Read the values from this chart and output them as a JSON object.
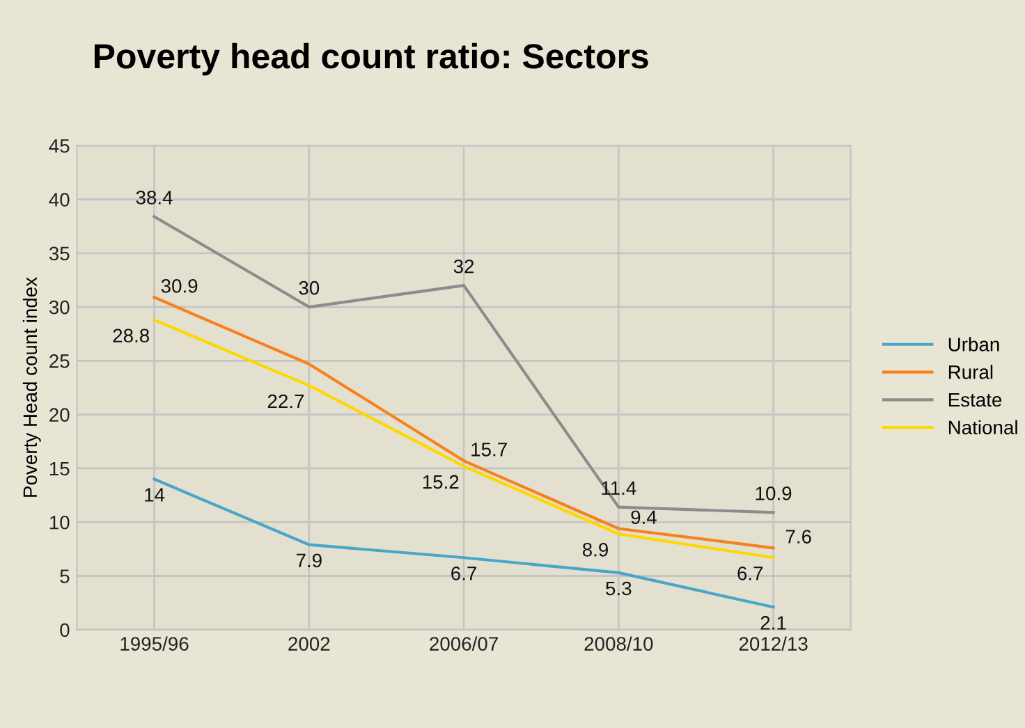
{
  "chart_data": {
    "type": "line",
    "title": "Poverty head count ratio: Sectors",
    "ylabel": "Poverty Head count index",
    "categories": [
      "1995/96",
      "2002",
      "2006/07",
      "2008/10",
      "2012/13"
    ],
    "series": [
      {
        "name": "Urban",
        "color": "#4aa6c8",
        "values": [
          14,
          7.9,
          6.7,
          5.3,
          2.1
        ],
        "value_labels": [
          "14",
          "7.9",
          "6.7",
          "5.3",
          "2.1"
        ]
      },
      {
        "name": "Rural",
        "color": "#f5821f",
        "values": [
          30.9,
          24.7,
          15.7,
          9.4,
          7.6
        ],
        "value_labels": [
          "30.9",
          null,
          "15.7",
          "9.4",
          "7.6"
        ]
      },
      {
        "name": "Estate",
        "color": "#8c8c8c",
        "values": [
          38.4,
          30,
          32,
          11.4,
          10.9
        ],
        "value_labels": [
          "38.4",
          "30",
          "32",
          "11.4",
          "10.9"
        ]
      },
      {
        "name": "National",
        "color": "#ffd700",
        "values": [
          28.8,
          22.7,
          15.2,
          8.9,
          6.7
        ],
        "value_labels": [
          "28.8",
          "22.7",
          "15.2",
          "8.9",
          "6.7"
        ]
      }
    ],
    "ylim": [
      0,
      45
    ],
    "yticks": [
      0,
      5,
      10,
      15,
      20,
      25,
      30,
      35,
      40,
      45
    ],
    "grid": true,
    "legend": "right",
    "marker": "none",
    "line_style": "solid"
  }
}
